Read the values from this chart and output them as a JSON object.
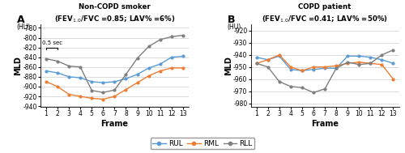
{
  "frames": [
    1,
    2,
    3,
    4,
    5,
    6,
    7,
    8,
    9,
    10,
    11,
    12,
    13
  ],
  "panel_A": {
    "title_line1": "Non-COPD smoker",
    "title_line2": "(FEV$_{1.0}$/FVC =0.85; LAV% =6%)",
    "RUL": [
      -868,
      -872,
      -880,
      -882,
      -890,
      -892,
      -890,
      -884,
      -875,
      -862,
      -854,
      -840,
      -838
    ],
    "RML": [
      -890,
      -900,
      -916,
      -920,
      -924,
      -926,
      -920,
      -906,
      -892,
      -878,
      -868,
      -862,
      -862
    ],
    "RLL": [
      -843,
      -848,
      -858,
      -860,
      -908,
      -912,
      -907,
      -875,
      -842,
      -818,
      -804,
      -798,
      -795
    ]
  },
  "panel_B": {
    "title_line1": "COPD patient",
    "title_line2": "(FEV$_{1.0}$/FVC =0.41; LAV% =50%)",
    "RUL": [
      -942,
      -944,
      -941,
      -952,
      -953,
      -952,
      -951,
      -951,
      -941,
      -941,
      -942,
      -944,
      -947
    ],
    "RML": [
      -947,
      -944,
      -940,
      -950,
      -953,
      -950,
      -950,
      -949,
      -947,
      -946,
      -947,
      -948,
      -960
    ],
    "RLL": [
      -947,
      -950,
      -962,
      -966,
      -967,
      -971,
      -968,
      -951,
      -946,
      -948,
      -947,
      -940,
      -936
    ]
  },
  "ylim_A": [
    -942,
    -773
  ],
  "ylim_B": [
    -983,
    -915
  ],
  "yticks_A": [
    -780,
    -800,
    -820,
    -840,
    -860,
    -880,
    -900,
    -920,
    -940
  ],
  "yticks_B": [
    -920,
    -930,
    -940,
    -950,
    -960,
    -970,
    -980
  ],
  "color_RUL": "#5B9BD5",
  "color_RML": "#ED7D31",
  "color_RLL": "#7F7F7F",
  "annotation_text": "0.5 sec",
  "xlabel": "Frame",
  "ylabel": "MLD",
  "hu_label": "(HU)"
}
